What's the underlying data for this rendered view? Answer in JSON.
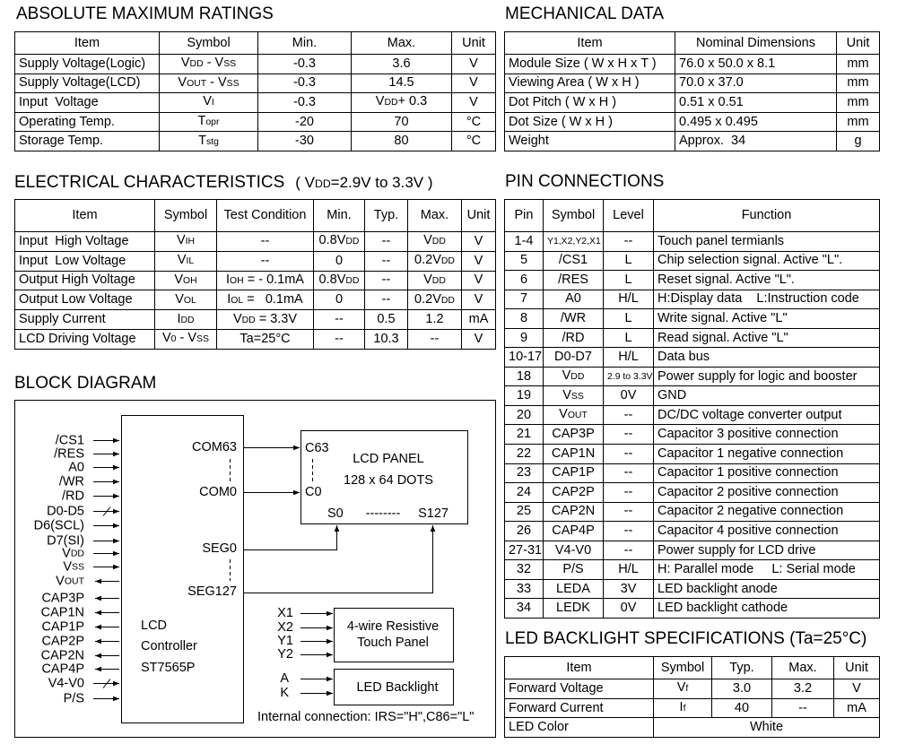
{
  "abs_max": {
    "title": "ABSOLUTE MAXIMUM RATINGS",
    "header": [
      "Item",
      "Symbol",
      "Min.",
      "Max.",
      "Unit"
    ],
    "rows": [
      [
        "Supply Voltage(Logic)",
        [
          "V",
          {
            "small": "DD"
          },
          " - V",
          {
            "small": "SS"
          }
        ],
        "-0.3",
        "3.6",
        "V"
      ],
      [
        "Supply Voltage(LCD)",
        [
          "V",
          {
            "small": "OUT"
          },
          " - V",
          {
            "small": "SS"
          }
        ],
        "-0.3",
        "14.5",
        "V"
      ],
      [
        "Input  Voltage",
        [
          "V",
          {
            "small": "I"
          }
        ],
        "-0.3",
        [
          "V",
          {
            "small": "DD"
          },
          "+ 0.3"
        ],
        "V"
      ],
      [
        "Operating Temp.",
        [
          "T",
          {
            "small": "opr"
          }
        ],
        "-20",
        "70",
        "°C"
      ],
      [
        "Storage Temp.",
        [
          "T",
          {
            "small": "stg"
          }
        ],
        "-30",
        "80",
        "°C"
      ]
    ]
  },
  "mechanical": {
    "title": "MECHANICAL DATA",
    "header": [
      "Item",
      "Nominal Dimensions",
      "Unit"
    ],
    "rows": [
      [
        "Module Size ( W x H x T )",
        "76.0 x 50.0 x 8.1",
        "mm"
      ],
      [
        "Viewing Area ( W x H )",
        "70.0 x 37.0",
        "mm"
      ],
      [
        "Dot Pitch ( W x H )",
        "0.51 x 0.51",
        "mm"
      ],
      [
        "Dot Size ( W x H )",
        "0.495 x 0.495",
        "mm"
      ],
      [
        "Weight",
        "Approx.  34",
        "g"
      ]
    ]
  },
  "electrical": {
    "title": "ELECTRICAL CHARACTERISTICS",
    "subtitle": [
      "( V",
      {
        "small": "DD"
      },
      "=2.9V to 3.3V )"
    ],
    "header": [
      "Item",
      "Symbol",
      "Test Condition",
      "Min.",
      "Typ.",
      "Max.",
      "Unit"
    ],
    "rows": [
      [
        "Input  High Voltage",
        [
          "V",
          {
            "small": "IH"
          }
        ],
        "--",
        [
          "0.8V",
          {
            "small": "DD"
          }
        ],
        "--",
        [
          "V",
          {
            "small": "DD"
          }
        ],
        "V"
      ],
      [
        "Input  Low Voltage",
        [
          "V",
          {
            "small": "IL"
          }
        ],
        "--",
        "0",
        "--",
        [
          "0.2V",
          {
            "small": "DD"
          }
        ],
        "V"
      ],
      [
        "Output High Voltage",
        [
          "V",
          {
            "small": "OH"
          }
        ],
        [
          "I",
          {
            "small": "OH"
          },
          " = - 0.1mA"
        ],
        [
          "0.8V",
          {
            "small": "DD"
          }
        ],
        "--",
        [
          "V",
          {
            "small": "DD"
          }
        ],
        "V"
      ],
      [
        "Output Low Voltage",
        [
          "V",
          {
            "small": "OL"
          }
        ],
        [
          "I",
          {
            "small": "OL"
          },
          " =   0.1mA"
        ],
        "0",
        "--",
        [
          "0.2V",
          {
            "small": "DD"
          }
        ],
        "V"
      ],
      [
        "Supply Current",
        [
          "I",
          {
            "small": "DD"
          }
        ],
        [
          "V",
          {
            "small": "DD"
          },
          " = 3.3V"
        ],
        "--",
        "0.5",
        "1.2",
        "mA"
      ],
      [
        "LCD Driving Voltage",
        [
          "V",
          {
            "small": "0"
          },
          " - V",
          {
            "small": "SS"
          }
        ],
        "Ta=25°C",
        "--",
        "10.3",
        "--",
        "V"
      ]
    ]
  },
  "pins": {
    "title": "PIN CONNECTIONS",
    "header": [
      "Pin",
      "Symbol",
      "Level",
      "Function"
    ],
    "rows": [
      [
        "1-4",
        [
          {
            "small": "Y1,X2,Y2,X1"
          }
        ],
        "--",
        "Touch panel termianls"
      ],
      [
        "5",
        "/CS1",
        "L",
        "Chip selection signal. Active \"L\"."
      ],
      [
        "6",
        "/RES",
        "L",
        "Reset signal. Active \"L\"."
      ],
      [
        "7",
        "A0",
        "H/L",
        "H:Display data    L:Instruction code"
      ],
      [
        "8",
        "/WR",
        "L",
        "Write signal. Active \"L\""
      ],
      [
        "9",
        "/RD",
        "L",
        "Read signal. Active \"L\""
      ],
      [
        "10-17",
        "D0-D7",
        "H/L",
        "Data bus"
      ],
      [
        "18",
        [
          "V",
          {
            "small": "DD"
          }
        ],
        [
          {
            "small": "2.9 to 3.3V"
          }
        ],
        "Power supply for logic and booster"
      ],
      [
        "19",
        [
          "V",
          {
            "small": "SS"
          }
        ],
        "0V",
        "GND"
      ],
      [
        "20",
        [
          "V",
          {
            "small": "OUT"
          }
        ],
        "--",
        "DC/DC voltage converter output"
      ],
      [
        "21",
        "CAP3P",
        "--",
        "Capacitor 3 positive connection"
      ],
      [
        "22",
        "CAP1N",
        "--",
        "Capacitor 1 negative connection"
      ],
      [
        "23",
        "CAP1P",
        "--",
        "Capacitor 1 positive connection"
      ],
      [
        "24",
        "CAP2P",
        "--",
        "Capacitor 2 positive connection"
      ],
      [
        "25",
        "CAP2N",
        "--",
        "Capacitor 2 negative connection"
      ],
      [
        "26",
        "CAP4P",
        "--",
        "Capacitor 4 positive connection"
      ],
      [
        "27-31",
        "V4-V0",
        "--",
        "Power supply for LCD drive"
      ],
      [
        "32",
        "P/S",
        "H/L",
        "H: Parallel mode     L: Serial mode"
      ],
      [
        "33",
        "LEDA",
        "3V",
        "LED backlight anode"
      ],
      [
        "34",
        "LEDK",
        "0V",
        "LED backlight cathode"
      ]
    ]
  },
  "led": {
    "title": "LED BACKLIGHT SPECIFICATIONS (Ta=25°C)",
    "header": [
      "Item",
      "Symbol",
      "Typ.",
      "Max.",
      "Unit"
    ],
    "rows": [
      [
        "Forward Voltage",
        [
          "V",
          {
            "small": "f"
          }
        ],
        "3.0",
        "3.2",
        "V"
      ],
      [
        "Forward Current",
        [
          "I",
          {
            "small": "f"
          }
        ],
        "40",
        "--",
        "mA"
      ],
      [
        "LED Color",
        "White"
      ]
    ]
  },
  "block_diagram": {
    "title": "BLOCK DIAGRAM",
    "left_pins": [
      "/CS1",
      "/RES",
      "A0",
      "/WR",
      "/RD",
      "D0-D5",
      "D6(SCL)",
      "D7(SI)",
      [
        "V",
        {
          "small": "DD"
        }
      ],
      [
        "V",
        {
          "small": "SS"
        }
      ],
      [
        "V",
        {
          "small": "OUT"
        }
      ],
      "CAP3P",
      "CAP1N",
      "CAP1P",
      "CAP2P",
      "CAP2N",
      "CAP4P",
      "V4-V0",
      "P/S"
    ],
    "controller_outputs": [
      "COM63",
      "COM0",
      "SEG0",
      "SEG127"
    ],
    "controller_label": [
      "LCD",
      "Controller",
      "ST7565P"
    ],
    "panel": {
      "inputs": [
        "C63",
        "C0"
      ],
      "title": "LCD  PANEL",
      "size": "128 x 64 DOTS",
      "segments": [
        "S0",
        "--------",
        "S127"
      ]
    },
    "touch": {
      "inputs": [
        "X1",
        "X2",
        "Y1",
        "Y2"
      ],
      "label": [
        "4-wire Resistive",
        "Touch Panel"
      ]
    },
    "backlight": {
      "inputs": [
        "A",
        "K"
      ],
      "label": "LED Backlight"
    },
    "note": "Internal connection: IRS=\"H\",C86=\"L\""
  }
}
